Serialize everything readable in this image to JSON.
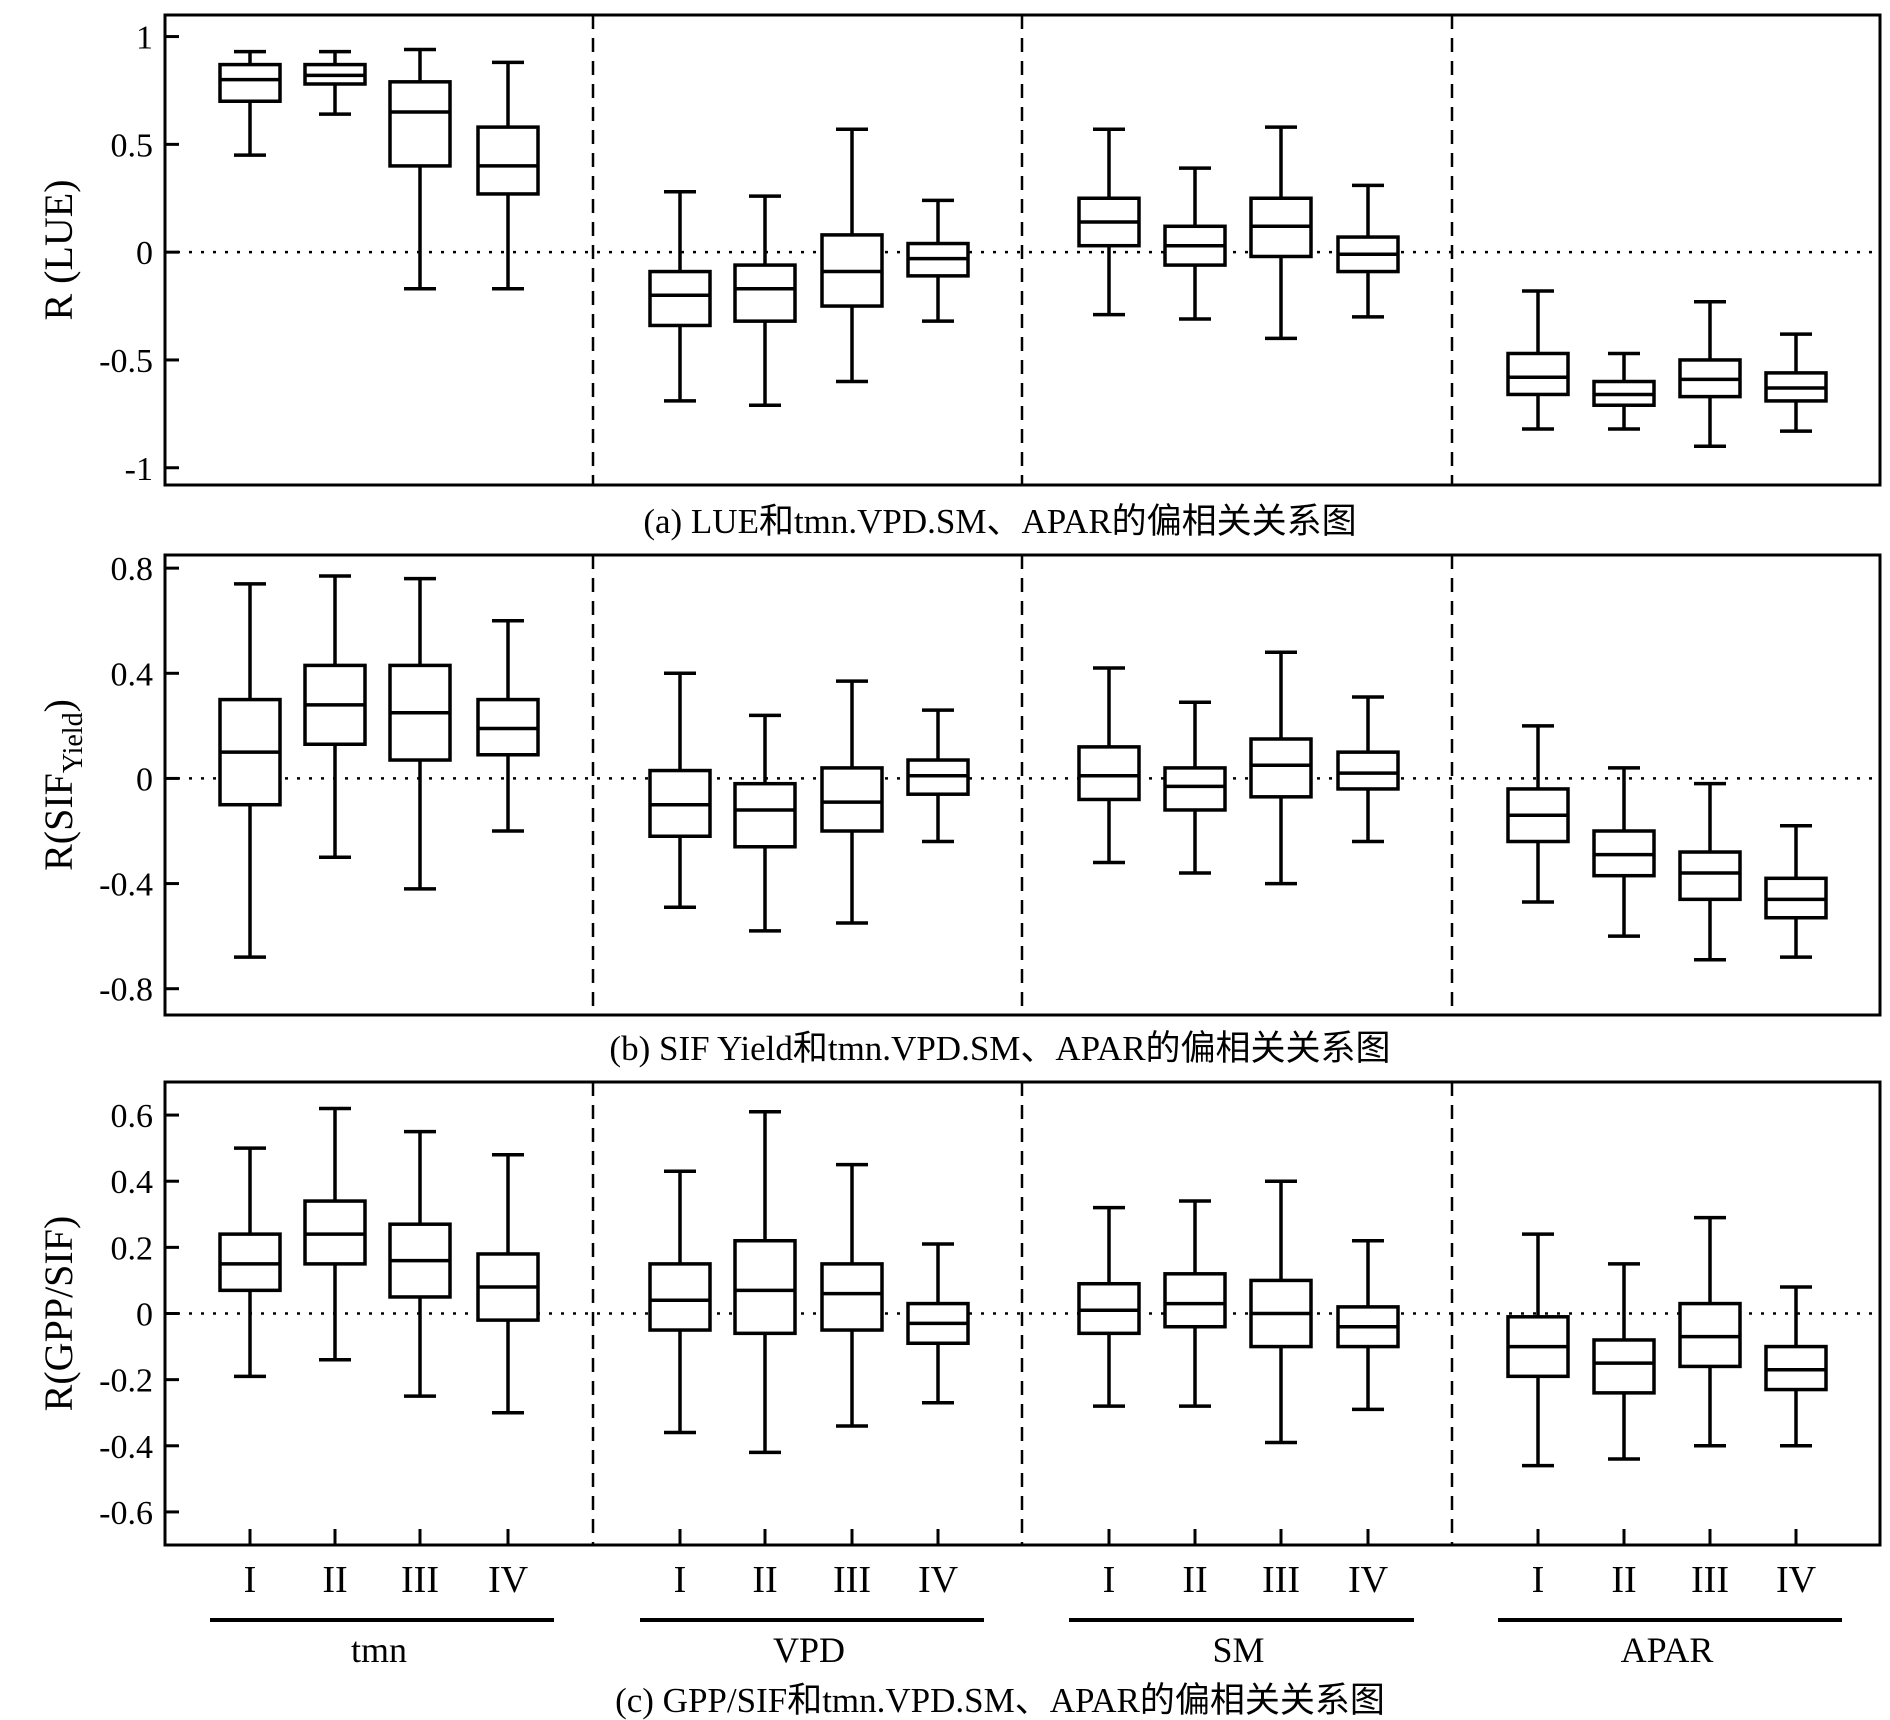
{
  "chart_data": {
    "type": "boxplot",
    "groups": [
      "tmn",
      "VPD",
      "SM",
      "APAR"
    ],
    "categories": [
      "I",
      "II",
      "III",
      "IV"
    ],
    "panels": [
      {
        "ylabel": "R (LUE)",
        "caption": "(a) LUE和tmn.VPD.SM、APAR的偏相关关系图",
        "ylim": [
          -1.08,
          1.1
        ],
        "yticks": [
          1,
          0.5,
          0,
          -0.5,
          -1
        ],
        "ytick_labels": [
          "1",
          "0.5",
          "0",
          "-0.5",
          "-1"
        ],
        "zero_line": true,
        "boxes": [
          {
            "group": "tmn",
            "cat": "I",
            "min": 0.45,
            "q1": 0.7,
            "median": 0.8,
            "q3": 0.87,
            "max": 0.93
          },
          {
            "group": "tmn",
            "cat": "II",
            "min": 0.64,
            "q1": 0.78,
            "median": 0.82,
            "q3": 0.87,
            "max": 0.93
          },
          {
            "group": "tmn",
            "cat": "III",
            "min": -0.17,
            "q1": 0.4,
            "median": 0.65,
            "q3": 0.79,
            "max": 0.94
          },
          {
            "group": "tmn",
            "cat": "IV",
            "min": -0.17,
            "q1": 0.27,
            "median": 0.4,
            "q3": 0.58,
            "max": 0.88
          },
          {
            "group": "VPD",
            "cat": "I",
            "min": -0.69,
            "q1": -0.34,
            "median": -0.2,
            "q3": -0.09,
            "max": 0.28
          },
          {
            "group": "VPD",
            "cat": "II",
            "min": -0.71,
            "q1": -0.32,
            "median": -0.17,
            "q3": -0.06,
            "max": 0.26
          },
          {
            "group": "VPD",
            "cat": "III",
            "min": -0.6,
            "q1": -0.25,
            "median": -0.09,
            "q3": 0.08,
            "max": 0.57
          },
          {
            "group": "VPD",
            "cat": "IV",
            "min": -0.32,
            "q1": -0.11,
            "median": -0.03,
            "q3": 0.04,
            "max": 0.24
          },
          {
            "group": "SM",
            "cat": "I",
            "min": -0.29,
            "q1": 0.03,
            "median": 0.14,
            "q3": 0.25,
            "max": 0.57
          },
          {
            "group": "SM",
            "cat": "II",
            "min": -0.31,
            "q1": -0.06,
            "median": 0.03,
            "q3": 0.12,
            "max": 0.39
          },
          {
            "group": "SM",
            "cat": "III",
            "min": -0.4,
            "q1": -0.02,
            "median": 0.12,
            "q3": 0.25,
            "max": 0.58
          },
          {
            "group": "SM",
            "cat": "IV",
            "min": -0.3,
            "q1": -0.09,
            "median": -0.01,
            "q3": 0.07,
            "max": 0.31
          },
          {
            "group": "APAR",
            "cat": "I",
            "min": -0.82,
            "q1": -0.66,
            "median": -0.58,
            "q3": -0.47,
            "max": -0.18
          },
          {
            "group": "APAR",
            "cat": "II",
            "min": -0.82,
            "q1": -0.71,
            "median": -0.66,
            "q3": -0.6,
            "max": -0.47
          },
          {
            "group": "APAR",
            "cat": "III",
            "min": -0.9,
            "q1": -0.67,
            "median": -0.59,
            "q3": -0.5,
            "max": -0.23
          },
          {
            "group": "APAR",
            "cat": "IV",
            "min": -0.83,
            "q1": -0.69,
            "median": -0.63,
            "q3": -0.56,
            "max": -0.38
          }
        ]
      },
      {
        "ylabel_main": "R(SIF",
        "ylabel_sub": "Yield",
        "ylabel_close": ")",
        "caption": "(b) SIF Yield和tmn.VPD.SM、APAR的偏相关关系图",
        "ylim": [
          -0.9,
          0.85
        ],
        "yticks": [
          0.8,
          0.4,
          0,
          -0.4,
          -0.8
        ],
        "ytick_labels": [
          "0.8",
          "0.4",
          "0",
          "-0.4",
          "-0.8"
        ],
        "zero_line": true,
        "boxes": [
          {
            "group": "tmn",
            "cat": "I",
            "min": -0.68,
            "q1": -0.1,
            "median": 0.1,
            "q3": 0.3,
            "max": 0.74
          },
          {
            "group": "tmn",
            "cat": "II",
            "min": -0.3,
            "q1": 0.13,
            "median": 0.28,
            "q3": 0.43,
            "max": 0.77
          },
          {
            "group": "tmn",
            "cat": "III",
            "min": -0.42,
            "q1": 0.07,
            "median": 0.25,
            "q3": 0.43,
            "max": 0.76
          },
          {
            "group": "tmn",
            "cat": "IV",
            "min": -0.2,
            "q1": 0.09,
            "median": 0.19,
            "q3": 0.3,
            "max": 0.6
          },
          {
            "group": "VPD",
            "cat": "I",
            "min": -0.49,
            "q1": -0.22,
            "median": -0.1,
            "q3": 0.03,
            "max": 0.4
          },
          {
            "group": "VPD",
            "cat": "II",
            "min": -0.58,
            "q1": -0.26,
            "median": -0.12,
            "q3": -0.02,
            "max": 0.24
          },
          {
            "group": "VPD",
            "cat": "III",
            "min": -0.55,
            "q1": -0.2,
            "median": -0.09,
            "q3": 0.04,
            "max": 0.37
          },
          {
            "group": "VPD",
            "cat": "IV",
            "min": -0.24,
            "q1": -0.06,
            "median": 0.01,
            "q3": 0.07,
            "max": 0.26
          },
          {
            "group": "SM",
            "cat": "I",
            "min": -0.32,
            "q1": -0.08,
            "median": 0.01,
            "q3": 0.12,
            "max": 0.42
          },
          {
            "group": "SM",
            "cat": "II",
            "min": -0.36,
            "q1": -0.12,
            "median": -0.03,
            "q3": 0.04,
            "max": 0.29
          },
          {
            "group": "SM",
            "cat": "III",
            "min": -0.4,
            "q1": -0.07,
            "median": 0.05,
            "q3": 0.15,
            "max": 0.48
          },
          {
            "group": "SM",
            "cat": "IV",
            "min": -0.24,
            "q1": -0.04,
            "median": 0.02,
            "q3": 0.1,
            "max": 0.31
          },
          {
            "group": "APAR",
            "cat": "I",
            "min": -0.47,
            "q1": -0.24,
            "median": -0.14,
            "q3": -0.04,
            "max": 0.2
          },
          {
            "group": "APAR",
            "cat": "II",
            "min": -0.6,
            "q1": -0.37,
            "median": -0.29,
            "q3": -0.2,
            "max": 0.04
          },
          {
            "group": "APAR",
            "cat": "III",
            "min": -0.69,
            "q1": -0.46,
            "median": -0.36,
            "q3": -0.28,
            "max": -0.02
          },
          {
            "group": "APAR",
            "cat": "IV",
            "min": -0.68,
            "q1": -0.53,
            "median": -0.46,
            "q3": -0.38,
            "max": -0.18
          }
        ]
      },
      {
        "ylabel": "R(GPP/SIF)",
        "caption": "(c) GPP/SIF和tmn.VPD.SM、APAR的偏相关关系图",
        "ylim": [
          -0.7,
          0.7
        ],
        "yticks": [
          0.6,
          0.4,
          0.2,
          0,
          -0.2,
          -0.4,
          -0.6
        ],
        "ytick_labels": [
          "0.6",
          "0.4",
          "0.2",
          "0",
          "-0.2",
          "-0.4",
          "-0.6"
        ],
        "zero_line": true,
        "boxes": [
          {
            "group": "tmn",
            "cat": "I",
            "min": -0.19,
            "q1": 0.07,
            "median": 0.15,
            "q3": 0.24,
            "max": 0.5
          },
          {
            "group": "tmn",
            "cat": "II",
            "min": -0.14,
            "q1": 0.15,
            "median": 0.24,
            "q3": 0.34,
            "max": 0.62
          },
          {
            "group": "tmn",
            "cat": "III",
            "min": -0.25,
            "q1": 0.05,
            "median": 0.16,
            "q3": 0.27,
            "max": 0.55
          },
          {
            "group": "tmn",
            "cat": "IV",
            "min": -0.3,
            "q1": -0.02,
            "median": 0.08,
            "q3": 0.18,
            "max": 0.48
          },
          {
            "group": "VPD",
            "cat": "I",
            "min": -0.36,
            "q1": -0.05,
            "median": 0.04,
            "q3": 0.15,
            "max": 0.43
          },
          {
            "group": "VPD",
            "cat": "II",
            "min": -0.42,
            "q1": -0.06,
            "median": 0.07,
            "q3": 0.22,
            "max": 0.61
          },
          {
            "group": "VPD",
            "cat": "III",
            "min": -0.34,
            "q1": -0.05,
            "median": 0.06,
            "q3": 0.15,
            "max": 0.45
          },
          {
            "group": "VPD",
            "cat": "IV",
            "min": -0.27,
            "q1": -0.09,
            "median": -0.03,
            "q3": 0.03,
            "max": 0.21
          },
          {
            "group": "SM",
            "cat": "I",
            "min": -0.28,
            "q1": -0.06,
            "median": 0.01,
            "q3": 0.09,
            "max": 0.32
          },
          {
            "group": "SM",
            "cat": "II",
            "min": -0.28,
            "q1": -0.04,
            "median": 0.03,
            "q3": 0.12,
            "max": 0.34
          },
          {
            "group": "SM",
            "cat": "III",
            "min": -0.39,
            "q1": -0.1,
            "median": 0.0,
            "q3": 0.1,
            "max": 0.4
          },
          {
            "group": "SM",
            "cat": "IV",
            "min": -0.29,
            "q1": -0.1,
            "median": -0.04,
            "q3": 0.02,
            "max": 0.22
          },
          {
            "group": "APAR",
            "cat": "I",
            "min": -0.46,
            "q1": -0.19,
            "median": -0.1,
            "q3": -0.01,
            "max": 0.24
          },
          {
            "group": "APAR",
            "cat": "II",
            "min": -0.44,
            "q1": -0.24,
            "median": -0.15,
            "q3": -0.08,
            "max": 0.15
          },
          {
            "group": "APAR",
            "cat": "III",
            "min": -0.4,
            "q1": -0.16,
            "median": -0.07,
            "q3": 0.03,
            "max": 0.29
          },
          {
            "group": "APAR",
            "cat": "IV",
            "min": -0.4,
            "q1": -0.23,
            "median": -0.17,
            "q3": -0.1,
            "max": 0.08
          }
        ]
      }
    ]
  }
}
